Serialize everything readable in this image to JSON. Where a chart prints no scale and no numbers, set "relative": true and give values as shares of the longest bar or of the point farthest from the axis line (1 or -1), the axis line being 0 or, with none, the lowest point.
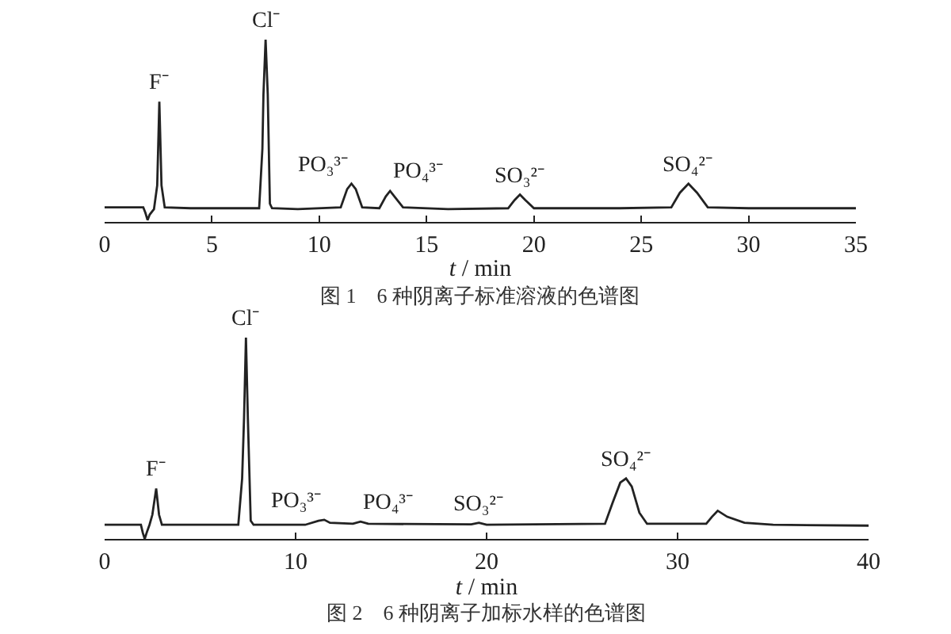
{
  "chart_data": [
    {
      "type": "line",
      "relative": true,
      "tick_labels": "x",
      "xlabel": "t / min",
      "xlim": [
        0,
        35
      ],
      "xticks": [
        0,
        5,
        10,
        15,
        20,
        25,
        30,
        35
      ],
      "x": [
        0,
        1.8,
        1.9,
        2.0,
        2.1,
        2.3,
        2.45,
        2.55,
        2.65,
        2.8,
        4,
        7.2,
        7.35,
        7.4,
        7.5,
        7.6,
        7.7,
        7.8,
        9,
        11.0,
        11.3,
        11.5,
        11.7,
        12.0,
        12.8,
        13.1,
        13.3,
        13.5,
        13.9,
        16,
        18.8,
        19.1,
        19.35,
        19.6,
        20.0,
        24,
        26.4,
        26.8,
        27.2,
        27.6,
        28.1,
        30,
        35
      ],
      "series": [
        {
          "color": "#222222",
          "values": [
            0.08,
            0.08,
            0.05,
            0.01,
            0.04,
            0.07,
            0.2,
            0.66,
            0.2,
            0.08,
            0.075,
            0.075,
            0.4,
            0.7,
            1.0,
            0.7,
            0.1,
            0.075,
            0.07,
            0.08,
            0.18,
            0.21,
            0.18,
            0.08,
            0.075,
            0.14,
            0.17,
            0.14,
            0.08,
            0.07,
            0.075,
            0.12,
            0.15,
            0.12,
            0.075,
            0.075,
            0.08,
            0.16,
            0.21,
            0.16,
            0.08,
            0.075,
            0.075
          ]
        }
      ],
      "annotations": [
        {
          "text": "F⁻",
          "x": 2.55,
          "y": 0.66
        },
        {
          "text": "Cl⁻",
          "x": 7.5,
          "y": 1.0
        },
        {
          "text": "PO₃³⁻",
          "x": 11.5,
          "y": 0.21
        },
        {
          "text": "PO₄³⁻",
          "x": 13.3,
          "y": 0.17
        },
        {
          "text": "SO₃²⁻",
          "x": 19.35,
          "y": 0.15
        },
        {
          "text": "SO₄²⁻",
          "x": 27.2,
          "y": 0.21
        },
        "图 1　6 种阴离子标准溶液的色谱图"
      ]
    },
    {
      "type": "line",
      "relative": true,
      "tick_labels": "x",
      "xlabel": "t / min",
      "xlim": [
        0,
        40
      ],
      "xticks": [
        0,
        10,
        20,
        30,
        40
      ],
      "x": [
        0,
        1.9,
        2.0,
        2.1,
        2.2,
        2.35,
        2.5,
        2.7,
        2.85,
        3.0,
        7.0,
        7.2,
        7.3,
        7.4,
        7.5,
        7.65,
        7.8,
        10.5,
        11.2,
        11.5,
        11.8,
        13.0,
        13.4,
        13.8,
        19.2,
        19.6,
        20.0,
        26.2,
        26.6,
        27.0,
        27.3,
        27.6,
        28.0,
        28.4,
        31.5,
        31.8,
        32.1,
        32.6,
        33.5,
        35,
        40
      ],
      "series": [
        {
          "color": "#222222",
          "values": [
            0.07,
            0.07,
            0.03,
            0.0,
            0.03,
            0.07,
            0.12,
            0.25,
            0.12,
            0.07,
            0.07,
            0.3,
            0.6,
            1.0,
            0.6,
            0.09,
            0.07,
            0.07,
            0.09,
            0.095,
            0.08,
            0.075,
            0.086,
            0.075,
            0.072,
            0.08,
            0.07,
            0.075,
            0.18,
            0.28,
            0.3,
            0.26,
            0.13,
            0.075,
            0.075,
            0.11,
            0.14,
            0.11,
            0.08,
            0.07,
            0.066
          ]
        }
      ],
      "annotations": [
        {
          "text": "F⁻",
          "x": 2.7,
          "y": 0.25
        },
        {
          "text": "Cl⁻",
          "x": 7.4,
          "y": 1.0
        },
        {
          "text": "PO₃³⁻",
          "x": 11.5,
          "y": 0.095
        },
        {
          "text": "PO₄³⁻",
          "x": 13.4,
          "y": 0.086
        },
        {
          "text": "SO₃²⁻",
          "x": 19.6,
          "y": 0.08
        },
        {
          "text": "SO₄²⁻",
          "x": 27.3,
          "y": 0.3
        },
        "图 2　6 种阴离子加标水样的色谱图"
      ]
    }
  ]
}
